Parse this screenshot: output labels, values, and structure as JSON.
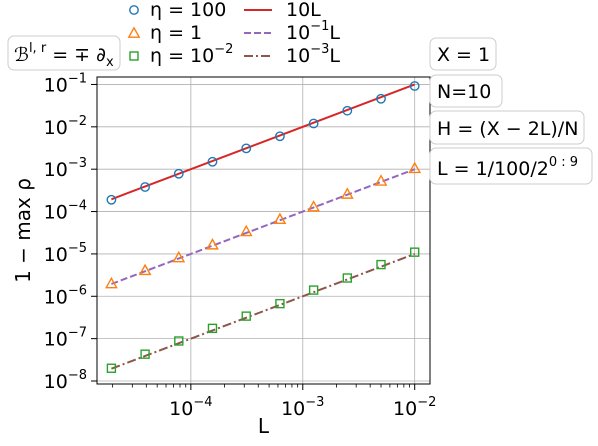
{
  "chart_data": {
    "type": "scatter",
    "xlabel": "L",
    "ylabel": "1 − max ρ",
    "xscale": "log",
    "yscale": "log",
    "xlim": [
      1.45e-05,
      0.0137
    ],
    "ylim": [
      8.5e-09,
      0.15
    ],
    "grid": true,
    "x_ticks": [
      {
        "value": 0.0001,
        "base": "10",
        "exp": "−4"
      },
      {
        "value": 0.001,
        "base": "10",
        "exp": "−3"
      },
      {
        "value": 0.01,
        "base": "10",
        "exp": "−2"
      }
    ],
    "y_ticks": [
      {
        "value": 0.1,
        "base": "10",
        "exp": "−1"
      },
      {
        "value": 0.01,
        "base": "10",
        "exp": "−2"
      },
      {
        "value": 0.001,
        "base": "10",
        "exp": "−3"
      },
      {
        "value": 0.0001,
        "base": "10",
        "exp": "−4"
      },
      {
        "value": 1e-05,
        "base": "10",
        "exp": "−5"
      },
      {
        "value": 1e-06,
        "base": "10",
        "exp": "−6"
      },
      {
        "value": 1e-07,
        "base": "10",
        "exp": "−7"
      },
      {
        "value": 1e-08,
        "base": "10",
        "exp": "−8"
      }
    ],
    "x": [
      1.95e-05,
      3.9e-05,
      7.8e-05,
      0.000156,
      0.0003125,
      0.000625,
      0.00125,
      0.0025,
      0.005,
      0.01
    ],
    "series": [
      {
        "name": "η = 100",
        "marker": "circle",
        "color": "#1f77b4",
        "values": [
          0.00019,
          0.00038,
          0.00078,
          0.0015,
          0.0031,
          0.006,
          0.012,
          0.024,
          0.046,
          0.092
        ]
      },
      {
        "name": "η = 1",
        "marker": "triangle",
        "color": "#ff7f0e",
        "values": [
          2e-06,
          4.1e-06,
          8.2e-06,
          1.65e-05,
          3.4e-05,
          6.6e-05,
          0.00013,
          0.00026,
          0.00053,
          0.00105
        ]
      },
      {
        "name": "η = 10⁻²",
        "marker": "square",
        "color": "#2ca02c",
        "values": [
          2e-08,
          4.3e-08,
          8.8e-08,
          1.75e-07,
          3.4e-07,
          6.7e-07,
          1.4e-06,
          2.7e-06,
          5.6e-06,
          1.1e-05
        ]
      }
    ],
    "lines": [
      {
        "name": "10L",
        "coef": 10,
        "style": "solid",
        "color": "#d62728"
      },
      {
        "name": "10⁻¹L",
        "coef": 0.1,
        "style": "dashed",
        "color": "#9467bd"
      },
      {
        "name": "10⁻³L",
        "coef": 0.001,
        "style": "dashdot",
        "color": "#8c564b"
      }
    ],
    "legend": {
      "placement": "top",
      "entries": [
        {
          "kind": "marker",
          "marker": "circle",
          "color": "#1f77b4",
          "prefix": "η = ",
          "base": "100",
          "exp": ""
        },
        {
          "kind": "marker",
          "marker": "triangle",
          "color": "#ff7f0e",
          "prefix": "η = ",
          "base": "1",
          "exp": ""
        },
        {
          "kind": "marker",
          "marker": "square",
          "color": "#2ca02c",
          "prefix": "η = ",
          "base": "10",
          "exp": "−2"
        },
        {
          "kind": "line",
          "style": "solid",
          "color": "#d62728",
          "prefix": "",
          "base": "10L",
          "exp": ""
        },
        {
          "kind": "line",
          "style": "dashed",
          "color": "#9467bd",
          "prefix": "",
          "base": "10",
          "exp": "−1",
          "suffix": "L"
        },
        {
          "kind": "line",
          "style": "dashdot",
          "color": "#8c564b",
          "prefix": "",
          "base": "10",
          "exp": "−3",
          "suffix": "L"
        }
      ]
    },
    "annotations": {
      "operator": {
        "main": "ℬ",
        "sup": "l, r",
        "rest": " = ∓ ∂",
        "sub": "x"
      },
      "x_value": "X = 1",
      "n_value": "N=10",
      "h_formula": "H = (X − 2L)/N",
      "l_formula": {
        "main": "L = 1/100/2",
        "sup": "0 : 9"
      }
    }
  }
}
